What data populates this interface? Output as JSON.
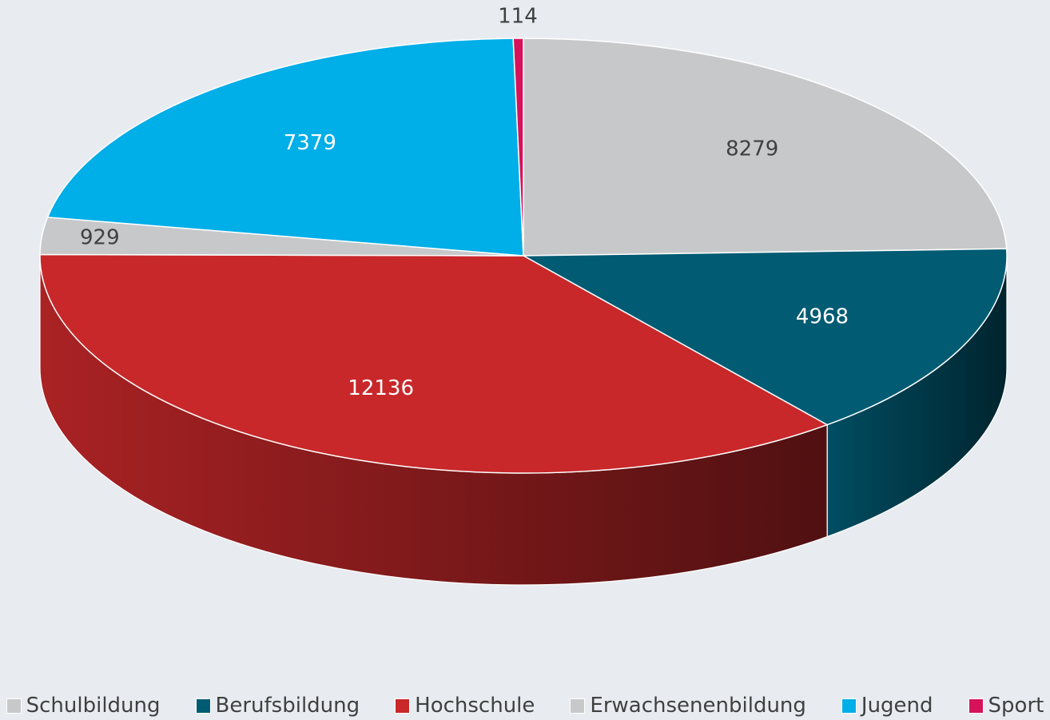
{
  "chart_data": {
    "type": "pie",
    "categories": [
      "Schulbildung",
      "Berufsbildung",
      "Hochschule",
      "Erwachsenenbildung",
      "Jugend",
      "Sport"
    ],
    "values": [
      8279,
      4968,
      12136,
      929,
      7379,
      114
    ],
    "colors": [
      "#c7c8ca",
      "#005b73",
      "#c8282a",
      "#c7c8ca",
      "#00aee8",
      "#d6135a"
    ],
    "legend": "bottom"
  }
}
